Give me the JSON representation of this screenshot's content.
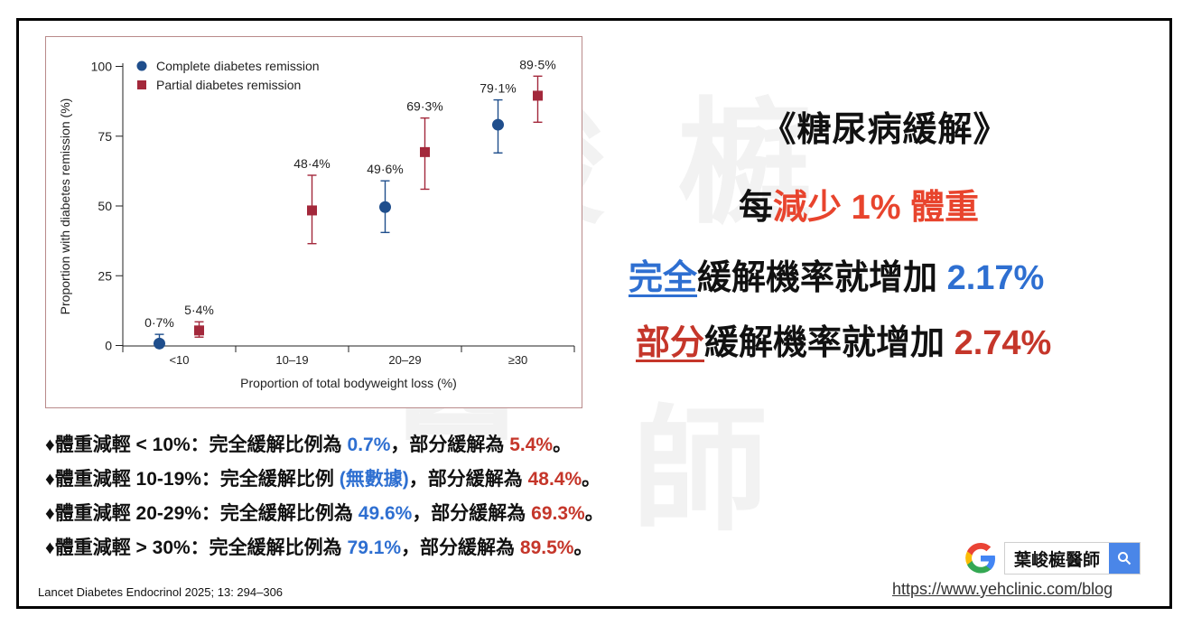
{
  "watermark": "葉峻榳醫師",
  "chart_data": {
    "type": "scatter",
    "xlabel": "Proportion of total bodyweight loss (%)",
    "ylabel": "Proportion with diabetes remission (%)",
    "ylim": [
      0,
      100
    ],
    "yticks": [
      0,
      25,
      50,
      75,
      100
    ],
    "categories": [
      "<10",
      "10–19",
      "20–29",
      "≥30"
    ],
    "legend_position": "top-left",
    "series": [
      {
        "name": "Complete diabetes remission",
        "color": "#1f4e8c",
        "marker": "circle",
        "points": [
          {
            "category": "<10",
            "value": 0.7,
            "ci": [
              0,
              4
            ],
            "label": "0·7%"
          },
          {
            "category": "20–29",
            "value": 49.6,
            "ci": [
              40.5,
              59
            ],
            "label": "49·6%"
          },
          {
            "category": "≥30",
            "value": 79.1,
            "ci": [
              69,
              88
            ],
            "label": "79·1%"
          }
        ]
      },
      {
        "name": "Partial diabetes remission",
        "color": "#a3283b",
        "marker": "square",
        "points": [
          {
            "category": "<10",
            "value": 5.4,
            "ci": [
              3,
              8.5
            ],
            "label": "5·4%"
          },
          {
            "category": "10–19",
            "value": 48.4,
            "ci": [
              36.5,
              61
            ],
            "label": "48·4%"
          },
          {
            "category": "20–29",
            "value": 69.3,
            "ci": [
              56,
              81.5
            ],
            "label": "69·3%"
          },
          {
            "category": "≥30",
            "value": 89.5,
            "ci": [
              80,
              96.5
            ],
            "label": "89·5%"
          }
        ]
      }
    ]
  },
  "headline": {
    "title": "《糖尿病緩解》",
    "line1_prefix": "每",
    "line1_highlight": "減少 1% 體重",
    "line2_key": "完全",
    "line2_text": "緩解機率就增加 ",
    "line2_value": "2.17%",
    "line3_key": "部分",
    "line3_text": "緩解機率就增加 ",
    "line3_value": "2.74%"
  },
  "bullets": [
    {
      "lead": "♦體重減輕 < 10%：完全緩解比例為 ",
      "complete": "0.7%",
      "mid": "，部分緩解為 ",
      "partial": "5.4%",
      "tail": "。"
    },
    {
      "lead": "♦體重減輕 10-19%：完全緩解比例 ",
      "complete": "(無數據)",
      "mid": "，部分緩解為 ",
      "partial": "48.4%",
      "tail": "。"
    },
    {
      "lead": "♦體重減輕 20-29%：完全緩解比例為 ",
      "complete": "49.6%",
      "mid": "，部分緩解為 ",
      "partial": "69.3%",
      "tail": "。"
    },
    {
      "lead": "♦體重減輕 > 30%：完全緩解比例為 ",
      "complete": "79.1%",
      "mid": "，部分緩解為 ",
      "partial": "89.5%",
      "tail": "。"
    }
  ],
  "citation": "Lancet Diabetes Endocrinol 2025; 13: 294–306",
  "search": {
    "query": "葉峻榳醫師",
    "icon": "search-icon"
  },
  "url": "https://www.yehclinic.com/blog"
}
